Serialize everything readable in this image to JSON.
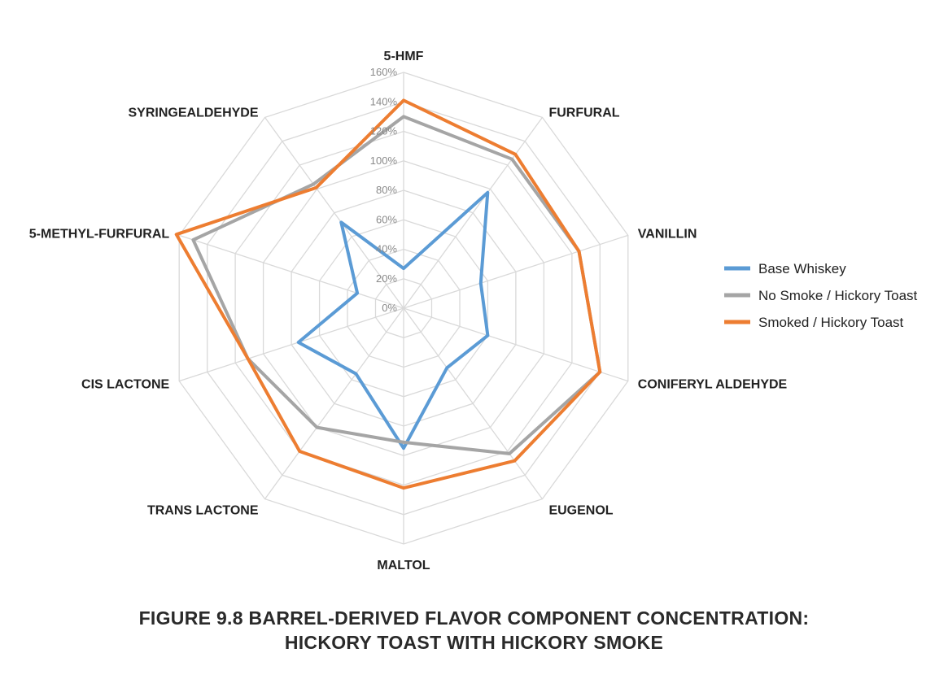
{
  "caption": {
    "line1": "FIGURE 9.8  BARREL-DERIVED FLAVOR COMPONENT CONCENTRATION:",
    "line2": "HICKORY TOAST WITH HICKORY SMOKE"
  },
  "chart_data": {
    "type": "radar",
    "title": "",
    "axes": [
      "5-HMF",
      "FURFURAL",
      "VANILLIN",
      "CONIFERYL ALDEHYDE",
      "EUGENOL",
      "MALTOL",
      "TRANS LACTONE",
      "CIS LACTONE",
      "5-METHYL-FURFURAL",
      "SYRINGEALDEHYDE"
    ],
    "ticks": [
      "0%",
      "20%",
      "40%",
      "60%",
      "80%",
      "100%",
      "120%",
      "140%",
      "160%"
    ],
    "range": [
      0,
      160
    ],
    "grid": true,
    "legend_position": "right",
    "series": [
      {
        "name": "Base Whiskey",
        "color": "#5b9bd5",
        "values": [
          27,
          97,
          55,
          60,
          50,
          95,
          55,
          75,
          33,
          72
        ]
      },
      {
        "name": "No Smoke / Hickory Toast",
        "color": "#a5a5a5",
        "values": [
          130,
          125,
          125,
          140,
          122,
          91,
          100,
          111,
          150,
          104
        ]
      },
      {
        "name": "Smoked / Hickory Toast",
        "color": "#ed7d31",
        "values": [
          141,
          129,
          125,
          140,
          128,
          122,
          120,
          111,
          162,
          101
        ]
      }
    ]
  }
}
